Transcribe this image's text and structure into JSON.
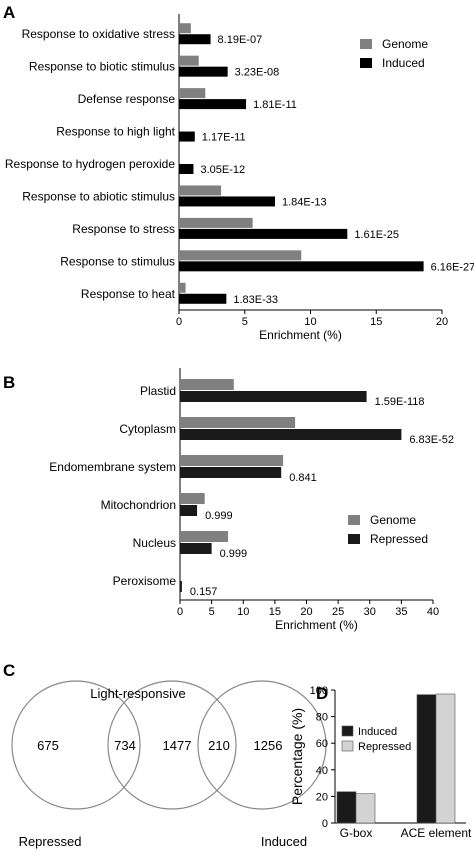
{
  "chart_data": [
    {
      "panel": "A",
      "type": "bar",
      "orientation": "horizontal",
      "categories": [
        "Response to oxidative stress",
        "Response to biotic stimulus",
        "Defense response",
        "Response to high light",
        "Response to hydrogen peroxide",
        "Response to abiotic stimulus",
        "Response to stress",
        "Response to stimulus",
        "Response to heat"
      ],
      "series": [
        {
          "name": "Genome",
          "color": "#808080",
          "values": [
            0.9,
            1.5,
            2.0,
            0.0,
            0.0,
            3.2,
            5.6,
            9.3,
            0.5
          ]
        },
        {
          "name": "Induced",
          "color": "#000000",
          "values": [
            2.4,
            3.7,
            5.1,
            1.2,
            1.1,
            7.3,
            12.8,
            18.6,
            3.6
          ]
        }
      ],
      "annotations": [
        "8.19E-07",
        "3.23E-08",
        "1.81E-11",
        "1.17E-11",
        "3.05E-12",
        "1.84E-13",
        "1.61E-25",
        "6.16E-27",
        "1.83E-33"
      ],
      "xlabel": "Enrichment (%)",
      "xlim": [
        0,
        20
      ],
      "xticks": [
        "0",
        "5",
        "10",
        "15",
        "20"
      ],
      "legend": "top-right"
    },
    {
      "panel": "B",
      "type": "bar",
      "orientation": "horizontal",
      "categories": [
        "Plastid",
        "Cytoplasm",
        "Endomembrane system",
        "Mitochondrion",
        "Nucleus",
        "Peroxisome"
      ],
      "series": [
        {
          "name": "Genome",
          "color": "#808080",
          "values": [
            8.5,
            18.2,
            16.3,
            3.9,
            7.6,
            0.0
          ]
        },
        {
          "name": "Repressed",
          "color": "#1a1a1a",
          "values": [
            29.5,
            35.0,
            16.0,
            2.7,
            5.0,
            0.3
          ]
        }
      ],
      "annotations": [
        "1.59E-118",
        "6.83E-52",
        "0.841",
        "0.999",
        "0.999",
        "0.157"
      ],
      "xlabel": "Enrichment (%)",
      "xlim": [
        0,
        40
      ],
      "xticks": [
        "0",
        "5",
        "10",
        "15",
        "20",
        "25",
        "30",
        "35",
        "40"
      ],
      "legend": "bottom-right"
    },
    {
      "panel": "C",
      "type": "venn",
      "sets": [
        "Repressed",
        "Light-responsive",
        "Induced"
      ],
      "regions": {
        "repressed_only": "675",
        "repressed_light": "734",
        "light_only": "1477",
        "light_induced": "210",
        "induced_only": "1256"
      }
    },
    {
      "panel": "D",
      "type": "bar",
      "categories": [
        "G-box",
        "ACE element"
      ],
      "series": [
        {
          "name": "Induced",
          "color": "#1a1a1a",
          "values": [
            23.5,
            96.5
          ]
        },
        {
          "name": "Repressed",
          "color": "#d3d3d3",
          "values": [
            22.0,
            97.0
          ]
        }
      ],
      "ylabel": "Percentage (%)",
      "ylim": [
        0,
        100
      ],
      "yticks": [
        "0",
        "20",
        "40",
        "60",
        "80",
        "100"
      ],
      "legend": "top-left"
    }
  ]
}
